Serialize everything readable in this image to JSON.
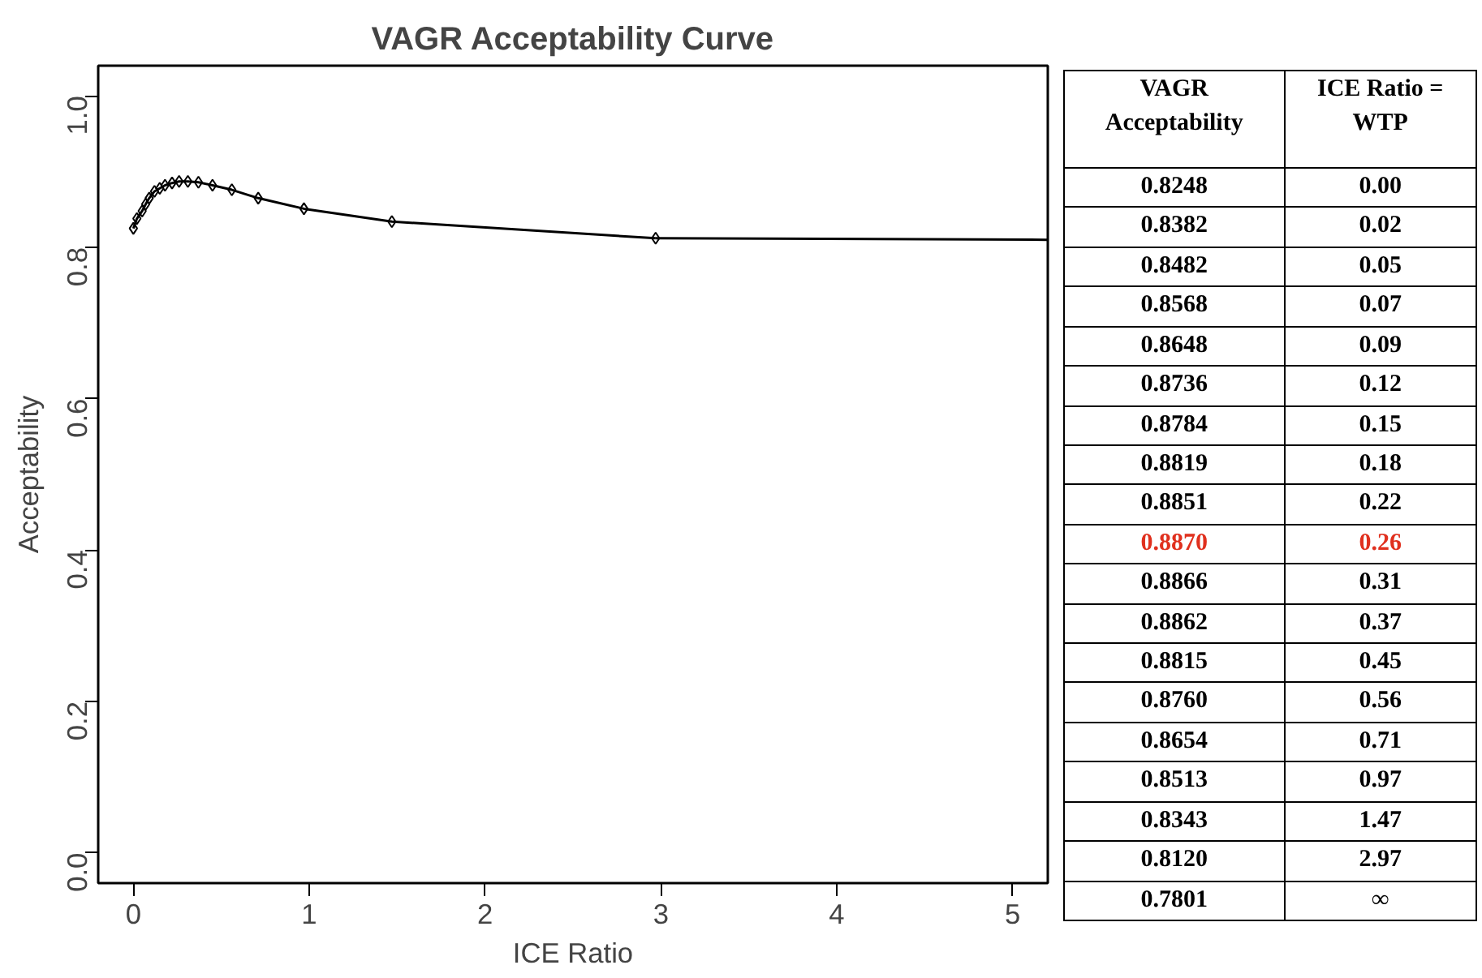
{
  "chart_data": [
    {
      "type": "line",
      "title": "VAGR Acceptability Curve",
      "xlabel": "ICE Ratio",
      "ylabel": "Acceptability",
      "xlim": [
        -0.2,
        5.2
      ],
      "ylim": [
        -0.04,
        1.04
      ],
      "xticks": [
        0,
        1,
        2,
        3,
        4,
        5
      ],
      "yticks": [
        {
          "value": 0,
          "label": "0.0"
        },
        {
          "value": 0.2,
          "label": "0.2"
        },
        {
          "value": 0.4,
          "label": "0.4"
        },
        {
          "value": 0.6,
          "label": "0.6"
        },
        {
          "value": 0.8,
          "label": "0.8"
        },
        {
          "value": 1,
          "label": "1.0"
        }
      ],
      "grid": false,
      "marker": "diamond",
      "line_style": "solid",
      "series": [
        {
          "color": "#000000",
          "x": [
            0.0,
            0.02,
            0.05,
            0.07,
            0.09,
            0.12,
            0.15,
            0.18,
            0.22,
            0.26,
            0.31,
            0.37,
            0.45,
            0.56,
            0.71,
            0.97,
            1.47,
            2.97
          ],
          "values": [
            0.825,
            0.838,
            0.848,
            0.857,
            0.865,
            0.874,
            0.878,
            0.882,
            0.885,
            0.887,
            0.887,
            0.886,
            0.882,
            0.876,
            0.865,
            0.851,
            0.834,
            0.812
          ]
        },
        {
          "color": "#000000",
          "marker": "none",
          "x": [
            2.97,
            5.2
          ],
          "values": [
            0.812,
            0.81
          ]
        }
      ]
    },
    {
      "type": "other",
      "annotations": [
        "VAGR Acceptability",
        "ICE Ratio = WTP",
        "0.8248",
        "0.00",
        "0.8382",
        "0.02",
        "0.8482",
        "0.05",
        "0.8568",
        "0.07",
        "0.8648",
        "0.09",
        "0.8736",
        "0.12",
        "0.8784",
        "0.15",
        "0.8819",
        "0.18",
        "0.8851",
        "0.22",
        "0.8870",
        "0.26",
        "0.8866",
        "0.31",
        "0.8862",
        "0.37",
        "0.8815",
        "0.45",
        "0.8760",
        "0.56",
        "0.8654",
        "0.71",
        "0.8513",
        "0.97",
        "0.8343",
        "1.47",
        "0.8120",
        "2.97",
        "0.7801",
        "∞"
      ],
      "colors": [
        "#000000",
        "#000000",
        "#000000",
        "#000000",
        "#000000",
        "#000000",
        "#000000",
        "#000000",
        "#000000",
        "#000000",
        "#000000",
        "#000000",
        "#000000",
        "#000000",
        "#000000",
        "#000000",
        "#000000",
        "#000000",
        "#000000",
        "#000000",
        "#e0301e",
        "#e0301e",
        "#000000",
        "#000000",
        "#000000",
        "#000000",
        "#000000",
        "#000000",
        "#000000",
        "#000000",
        "#000000",
        "#000000",
        "#000000",
        "#000000",
        "#000000",
        "#000000",
        "#000000",
        "#000000",
        "#000000",
        "#000000"
      ]
    }
  ]
}
